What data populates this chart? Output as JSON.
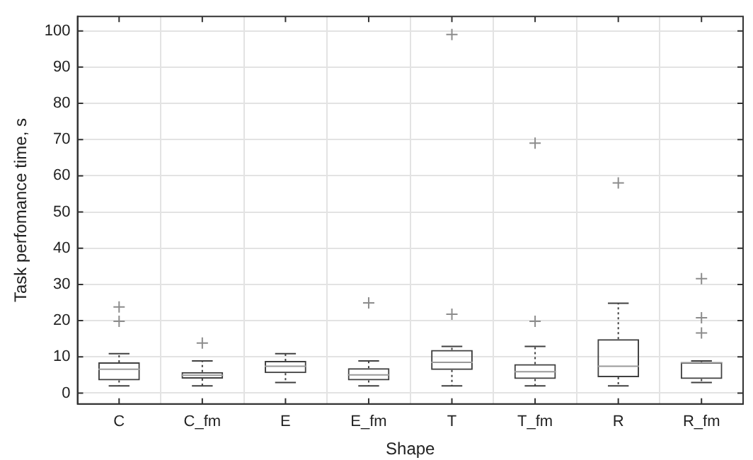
{
  "chart_data": {
    "type": "box",
    "xlabel": "Shape",
    "ylabel": "Task perfomance time, s",
    "categories": [
      "C",
      "C_fm",
      "E",
      "E_fm",
      "T",
      "T_fm",
      "R",
      "R_fm"
    ],
    "series": [
      {
        "color": "#404040",
        "boxes": [
          {
            "low": 2,
            "q1": 3.5,
            "median": 6.6,
            "q3": 8.5,
            "high": 10.9,
            "outliers": [
              19.8,
              23.8
            ]
          },
          {
            "low": 2,
            "q1": 4,
            "median": 4.9,
            "q3": 5.8,
            "high": 8.9,
            "outliers": [
              13.8
            ]
          },
          {
            "low": 2.9,
            "q1": 5.5,
            "median": 7.4,
            "q3": 8.9,
            "high": 10.9
          },
          {
            "low": 2,
            "q1": 3.5,
            "median": 5,
            "q3": 6.9,
            "high": 8.9,
            "outliers": [
              24.9
            ]
          },
          {
            "low": 2,
            "q1": 6.4,
            "median": 8.5,
            "q3": 11.9,
            "high": 12.9,
            "outliers": [
              21.8,
              99
            ]
          },
          {
            "low": 2,
            "q1": 3.9,
            "median": 5.9,
            "q3": 8,
            "high": 12.9,
            "outliers": [
              19.8,
              69
            ]
          },
          {
            "low": 2,
            "q1": 4.4,
            "median": 7.4,
            "q3": 14.9,
            "high": 24.8,
            "outliers": [
              58
            ]
          },
          {
            "low": 2.9,
            "q1": 3.9,
            "median": 8.4,
            "q3": 8.5,
            "high": 8.9,
            "outliers": [
              16.6,
              20.8,
              31.6
            ]
          }
        ]
      }
    ],
    "ylim": [
      -3,
      104
    ],
    "yticks": [
      0,
      10,
      20,
      30,
      40,
      50,
      60,
      70,
      80,
      90,
      100
    ],
    "grid": true,
    "line_style": "dotted",
    "marker": "cross",
    "legend": false
  }
}
